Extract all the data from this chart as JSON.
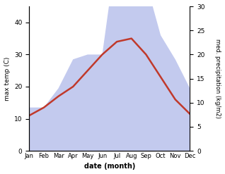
{
  "months": [
    "Jan",
    "Feb",
    "Mar",
    "Apr",
    "May",
    "Jun",
    "Jul",
    "Aug",
    "Sep",
    "Oct",
    "Nov",
    "Dec"
  ],
  "max_temp": [
    11,
    13.5,
    17,
    20,
    25,
    30,
    34,
    35,
    30,
    23,
    16,
    11.5
  ],
  "precipitation": [
    9,
    9,
    13,
    19,
    20,
    20,
    42,
    42,
    35,
    24,
    19,
    13
  ],
  "temp_color": "#c0392b",
  "precip_fill_color": "#aab4e8",
  "temp_ylim": [
    0,
    45
  ],
  "precip_ylim": [
    0,
    30
  ],
  "temp_yticks": [
    0,
    10,
    20,
    30,
    40
  ],
  "precip_yticks": [
    0,
    5,
    10,
    15,
    20,
    25,
    30
  ],
  "xlabel": "date (month)",
  "ylabel_left": "max temp (C)",
  "ylabel_right": "med. precipitation (kg/m2)",
  "background_color": "#ffffff"
}
